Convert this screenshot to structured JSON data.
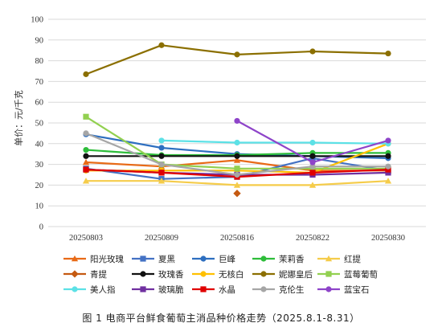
{
  "chart_data": {
    "type": "line",
    "title": "",
    "xlabel": "",
    "ylabel": "单价：元/千克",
    "ylim": [
      0,
      100
    ],
    "yticks": [
      0,
      10,
      20,
      30,
      40,
      50,
      60,
      70,
      80,
      90,
      100
    ],
    "grid": true,
    "legend_position": "bottom",
    "categories": [
      "20250803",
      "20250809",
      "20250816",
      "20250822",
      "20250830"
    ],
    "series": [
      {
        "name": "阳光玫瑰",
        "color": "#E86A17",
        "marker": "triangle",
        "values": [
          31,
          29,
          32,
          27,
          27
        ]
      },
      {
        "name": "夏黑",
        "color": "#4472C4",
        "marker": "square",
        "values": [
          28,
          23,
          24,
          33,
          27
        ]
      },
      {
        "name": "巨峰",
        "color": "#2E6FC0",
        "marker": "circle",
        "values": [
          44.5,
          38,
          35,
          34,
          33
        ]
      },
      {
        "name": "茉莉香",
        "color": "#2EBD3A",
        "marker": "circle",
        "values": [
          37,
          34.5,
          34.5,
          35.5,
          35.5
        ]
      },
      {
        "name": "红提",
        "color": "#F5CC4A",
        "marker": "triangle",
        "values": [
          22,
          22,
          20,
          20,
          22
        ]
      },
      {
        "name": "青提",
        "color": "#C55A11",
        "marker": "diamond",
        "values": [
          null,
          null,
          16,
          null,
          null
        ]
      },
      {
        "name": "玫瑰香",
        "color": "#111111",
        "marker": "circle",
        "values": [
          34,
          34,
          34,
          34,
          34
        ]
      },
      {
        "name": "无核白",
        "color": "#FFC000",
        "marker": "circle",
        "values": [
          27,
          27,
          27,
          26,
          40
        ]
      },
      {
        "name": "妮娜皇后",
        "color": "#8B6F00",
        "marker": "circle",
        "values": [
          73.5,
          87.5,
          83,
          84.5,
          83.5
        ]
      },
      {
        "name": "蓝莓葡萄",
        "color": "#92D050",
        "marker": "square",
        "values": [
          53,
          30,
          28,
          28,
          28
        ]
      },
      {
        "name": "美人指",
        "color": "#5CE1E6",
        "marker": "circle",
        "values": [
          null,
          41.5,
          40.5,
          40.5,
          40
        ]
      },
      {
        "name": "玻璃脆",
        "color": "#7030A0",
        "marker": "square",
        "values": [
          27.5,
          26,
          25,
          25,
          26
        ]
      },
      {
        "name": "水晶",
        "color": "#E00000",
        "marker": "square",
        "values": [
          27.5,
          26,
          24,
          26,
          27.5
        ]
      },
      {
        "name": "克伦生",
        "color": "#A6A6A6",
        "marker": "circle",
        "values": [
          45,
          30,
          25,
          29,
          29
        ]
      },
      {
        "name": "蓝宝石",
        "color": "#8E44C9",
        "marker": "circle",
        "values": [
          null,
          null,
          51,
          31,
          41.5
        ]
      }
    ]
  },
  "caption": "图 1  电商平台鲜食葡萄主消品种价格走势（2025.8.1-8.31）"
}
